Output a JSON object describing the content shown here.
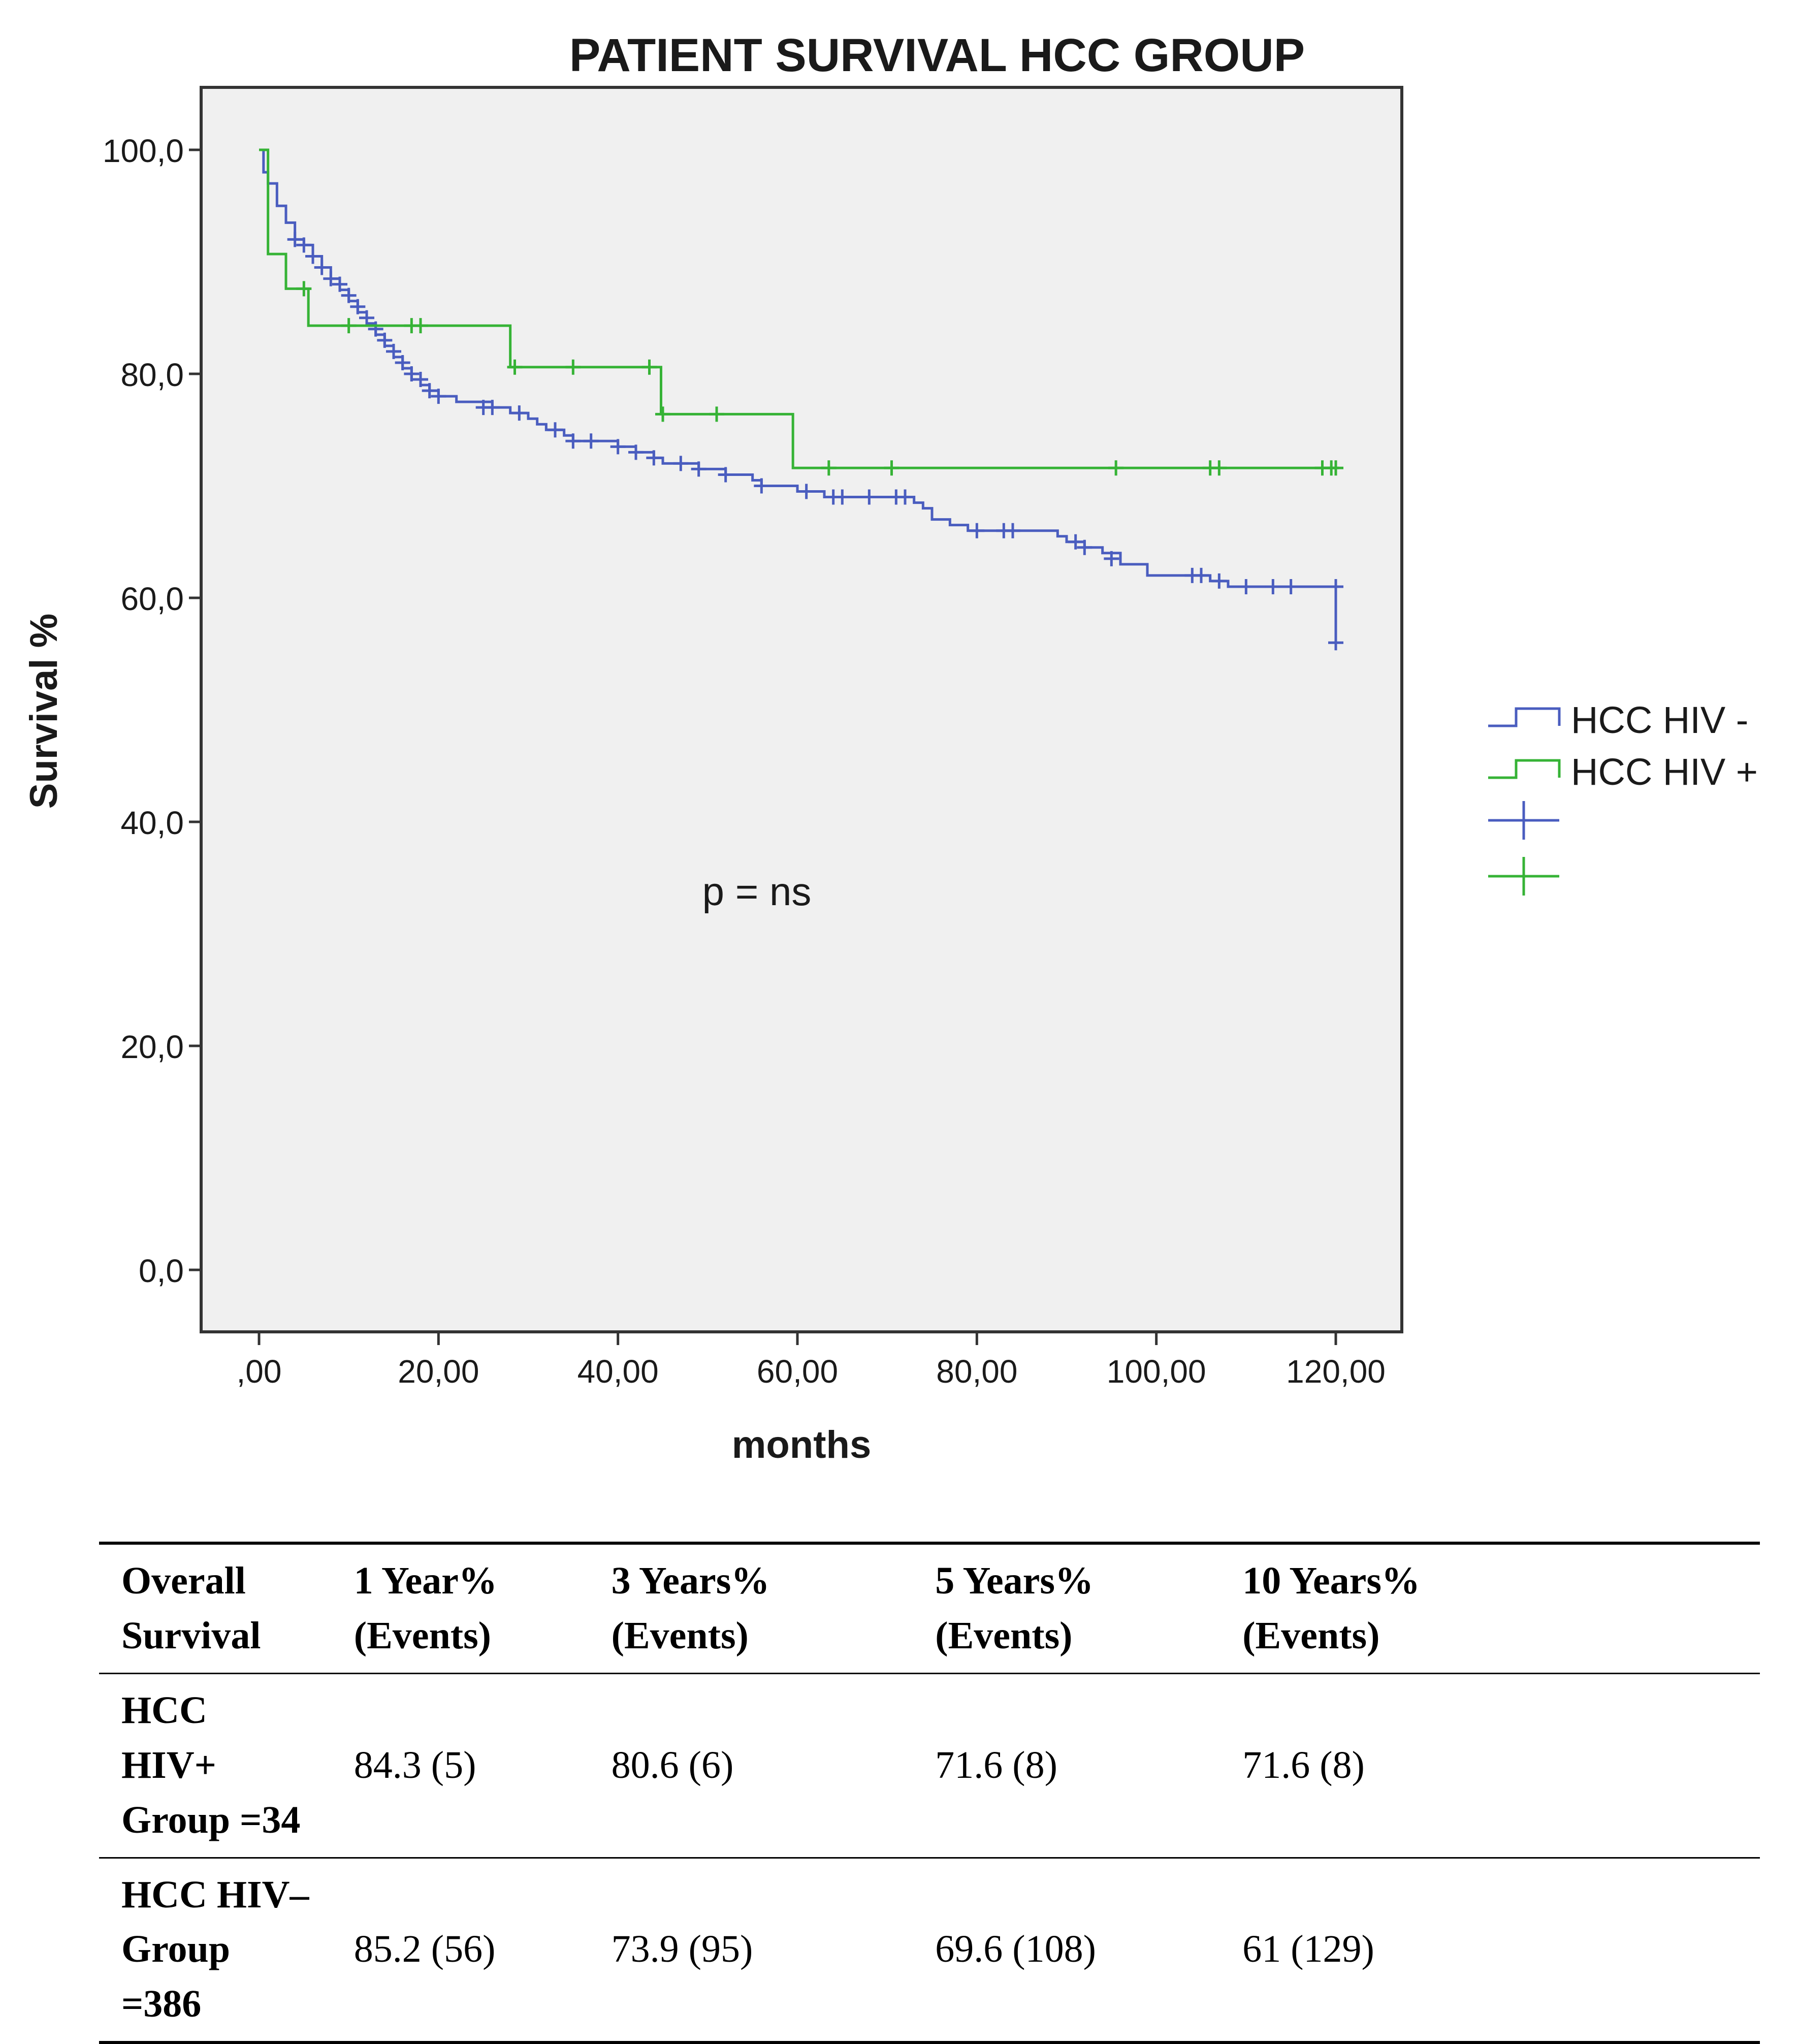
{
  "chart_data": {
    "type": "line",
    "subtype": "kaplan-meier step",
    "title": "PATIENT SURVIVAL HCC GROUP",
    "xlabel": "months",
    "ylabel": "Survival %",
    "xlim": [
      0,
      120
    ],
    "ylim": [
      0,
      100
    ],
    "xticks": [
      0,
      20,
      40,
      60,
      80,
      100,
      120
    ],
    "xtick_labels": [
      ",00",
      "20,00",
      "40,00",
      "60,00",
      "80,00",
      "100,00",
      "120,00"
    ],
    "yticks": [
      0,
      20,
      40,
      60,
      80,
      100
    ],
    "ytick_labels": [
      "0,0",
      "20,0",
      "40,0",
      "60,0",
      "80,0",
      "100,0"
    ],
    "grid": false,
    "legend_position": "right",
    "annotation": "p = ns",
    "series": [
      {
        "name": "HCC HIV -",
        "color": "#4a5dbf",
        "steps": [
          [
            0,
            100
          ],
          [
            0.5,
            98
          ],
          [
            1,
            97
          ],
          [
            2,
            95
          ],
          [
            3,
            93.5
          ],
          [
            4,
            92
          ],
          [
            5,
            91.5
          ],
          [
            6,
            90.5
          ],
          [
            7,
            89.5
          ],
          [
            8,
            88.5
          ],
          [
            9,
            87.5
          ],
          [
            10,
            86.5
          ],
          [
            11,
            85.5
          ],
          [
            12,
            84.5
          ],
          [
            13,
            83.5
          ],
          [
            14,
            82.5
          ],
          [
            15,
            81.5
          ],
          [
            16,
            80.5
          ],
          [
            17,
            79.5
          ],
          [
            18,
            79
          ],
          [
            19,
            78.5
          ],
          [
            20,
            78
          ],
          [
            22,
            77.5
          ],
          [
            26,
            77
          ],
          [
            28,
            76.5
          ],
          [
            30,
            76
          ],
          [
            31,
            75.5
          ],
          [
            32,
            75
          ],
          [
            34,
            74.5
          ],
          [
            35,
            74
          ],
          [
            38,
            74
          ],
          [
            40,
            73.5
          ],
          [
            42,
            73
          ],
          [
            44,
            72.5
          ],
          [
            45,
            72
          ],
          [
            48,
            72
          ],
          [
            49,
            71.5
          ],
          [
            52,
            71
          ],
          [
            55,
            70.5
          ],
          [
            56,
            70
          ],
          [
            60,
            69.5
          ],
          [
            63,
            69
          ],
          [
            70,
            69
          ],
          [
            73,
            68.5
          ],
          [
            74,
            68
          ],
          [
            75,
            67
          ],
          [
            77,
            66.5
          ],
          [
            79,
            66
          ],
          [
            85,
            66
          ],
          [
            89,
            65.5
          ],
          [
            90,
            65
          ],
          [
            92,
            64.5
          ],
          [
            94,
            64
          ],
          [
            96,
            63
          ],
          [
            99,
            62
          ],
          [
            104,
            62
          ],
          [
            106,
            61.5
          ],
          [
            108,
            61
          ],
          [
            119.8,
            61
          ],
          [
            120,
            56
          ]
        ],
        "censored": [
          [
            4,
            92
          ],
          [
            5,
            91.5
          ],
          [
            6,
            90.5
          ],
          [
            7,
            89.5
          ],
          [
            8,
            88.5
          ],
          [
            9,
            88
          ],
          [
            10,
            87
          ],
          [
            11,
            86
          ],
          [
            12,
            85
          ],
          [
            13,
            84
          ],
          [
            14,
            83
          ],
          [
            15,
            82
          ],
          [
            16,
            81
          ],
          [
            17,
            80
          ],
          [
            18,
            79.5
          ],
          [
            19,
            78.5
          ],
          [
            20,
            78
          ],
          [
            25,
            77
          ],
          [
            26,
            77
          ],
          [
            29,
            76.5
          ],
          [
            33,
            75
          ],
          [
            35,
            74
          ],
          [
            37,
            74
          ],
          [
            40,
            73.5
          ],
          [
            42,
            73
          ],
          [
            44,
            72.5
          ],
          [
            47,
            72
          ],
          [
            49,
            71.5
          ],
          [
            52,
            71
          ],
          [
            56,
            70
          ],
          [
            61,
            69.5
          ],
          [
            64,
            69
          ],
          [
            65,
            69
          ],
          [
            68,
            69
          ],
          [
            71,
            69
          ],
          [
            72,
            69
          ],
          [
            80,
            66
          ],
          [
            83,
            66
          ],
          [
            84,
            66
          ],
          [
            91,
            65
          ],
          [
            92,
            64.5
          ],
          [
            95,
            63.5
          ],
          [
            104,
            62
          ],
          [
            105,
            62
          ],
          [
            107,
            61.5
          ],
          [
            110,
            61
          ],
          [
            113,
            61
          ],
          [
            115,
            61
          ],
          [
            120,
            61
          ],
          [
            120,
            56
          ]
        ]
      },
      {
        "name": "HCC HIV +",
        "color": "#36b336",
        "steps": [
          [
            0,
            100
          ],
          [
            1,
            90.7
          ],
          [
            3,
            87.6
          ],
          [
            5.5,
            84.3
          ],
          [
            28,
            80.6
          ],
          [
            44.8,
            76.4
          ],
          [
            59.5,
            71.6
          ],
          [
            120,
            71.6
          ]
        ],
        "censored": [
          [
            5,
            87.6
          ],
          [
            10,
            84.3
          ],
          [
            17,
            84.3
          ],
          [
            18,
            84.3
          ],
          [
            28.5,
            80.6
          ],
          [
            35,
            80.6
          ],
          [
            43.5,
            80.6
          ],
          [
            45,
            76.4
          ],
          [
            51,
            76.4
          ],
          [
            63.5,
            71.6
          ],
          [
            70.5,
            71.6
          ],
          [
            95.5,
            71.6
          ],
          [
            106,
            71.6
          ],
          [
            107,
            71.6
          ],
          [
            118.5,
            71.6
          ],
          [
            119.5,
            71.6
          ],
          [
            120,
            71.6
          ]
        ]
      }
    ],
    "legend_marker_entries": [
      {
        "color": "#4a5dbf"
      },
      {
        "color": "#36b336"
      }
    ]
  },
  "table": {
    "headers": [
      [
        "Overall",
        "Survival"
      ],
      [
        "1 Year%",
        "(Events)"
      ],
      [
        "3 Years%",
        "(Events)"
      ],
      [
        "5 Years%",
        "(Events)"
      ],
      [
        "10 Years%",
        "(Events)"
      ]
    ],
    "rows": [
      {
        "label": [
          "HCC HIV+",
          "Group =34"
        ],
        "values": [
          "84.3 (5)",
          "80.6 (6)",
          "71.6 (8)",
          "71.6 (8)"
        ]
      },
      {
        "label": [
          "HCC HIV–",
          "Group =386"
        ],
        "values": [
          "85.2 (56)",
          "73.9 (95)",
          "69.6 (108)",
          "61 (129)"
        ]
      }
    ]
  }
}
